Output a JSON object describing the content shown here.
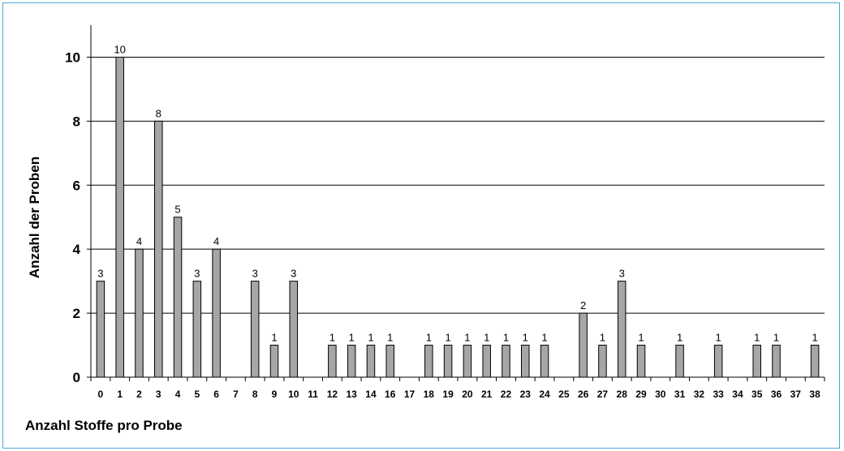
{
  "chart_data": {
    "type": "bar",
    "title": "",
    "xlabel": "Anzahl Stoffe pro Probe",
    "ylabel": "Anzahl der Proben",
    "ylim": [
      0,
      11
    ],
    "yticks": [
      "0",
      "2",
      "4",
      "6",
      "8",
      "10"
    ],
    "grid": true,
    "legend": "none",
    "colors": {
      "bar_fill": "#a6a6a6",
      "bar_stroke": "#000000",
      "grid": "#000000",
      "frame": "#4aa8d8"
    },
    "categories": [
      "0",
      "1",
      "2",
      "3",
      "4",
      "5",
      "6",
      "7",
      "8",
      "9",
      "10",
      "11",
      "12",
      "13",
      "14",
      "16",
      "17",
      "18",
      "19",
      "20",
      "21",
      "22",
      "23",
      "24",
      "25",
      "26",
      "27",
      "28",
      "29",
      "30",
      "31",
      "32",
      "33",
      "34",
      "35",
      "36",
      "37",
      "38"
    ],
    "values": [
      3,
      10,
      4,
      8,
      5,
      3,
      4,
      0,
      3,
      1,
      3,
      0,
      1,
      1,
      1,
      1,
      0,
      1,
      1,
      1,
      1,
      1,
      1,
      1,
      0,
      2,
      1,
      3,
      1,
      0,
      1,
      0,
      1,
      0,
      1,
      1,
      0,
      1
    ]
  }
}
